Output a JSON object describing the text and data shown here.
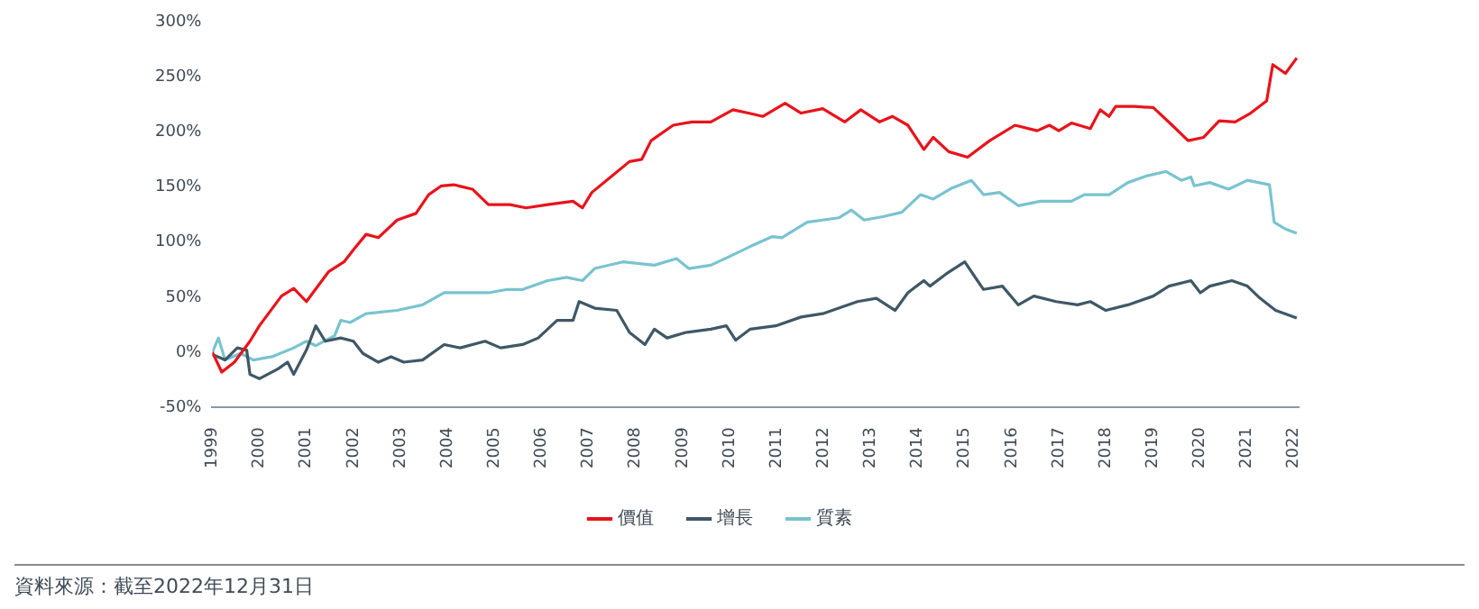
{
  "chart_data": {
    "type": "line",
    "annotations": [
      "資料來源：截至2022年12月31日"
    ],
    "xlim": [
      1999,
      2022.1
    ],
    "xticks": [
      1999,
      2000,
      2001,
      2002,
      2003,
      2004,
      2005,
      2006,
      2007,
      2008,
      2009,
      2010,
      2011,
      2012,
      2013,
      2014,
      2015,
      2016,
      2017,
      2018,
      2019,
      2020,
      2021,
      2022
    ],
    "ylim": [
      -50,
      300
    ],
    "yticks": [
      {
        "value": -50,
        "label": "-50%"
      },
      {
        "value": 0,
        "label": "0%"
      },
      {
        "value": 50,
        "label": "50%"
      },
      {
        "value": 100,
        "label": "100%"
      },
      {
        "value": 150,
        "label": "150%"
      },
      {
        "value": 200,
        "label": "200%"
      },
      {
        "value": 250,
        "label": "250%"
      },
      {
        "value": 300,
        "label": "300%"
      }
    ],
    "grid": false,
    "legend": "bottom",
    "marker": "none",
    "line_style": "solid",
    "series": [
      {
        "name": "價值",
        "color": "#e8141b",
        "x": [
          1999,
          1999.2,
          1999.47,
          1999.8,
          2000,
          2000.47,
          2000.73,
          2001,
          2001.47,
          2001.8,
          2002,
          2002.27,
          2002.53,
          2002.93,
          2003.33,
          2003.6,
          2003.87,
          2004.13,
          2004.53,
          2004.87,
          2005.33,
          2005.67,
          2006.13,
          2006.67,
          2006.87,
          2007.07,
          2007.47,
          2007.87,
          2008.13,
          2008.33,
          2008.8,
          2009.2,
          2009.6,
          2010.07,
          2010.4,
          2010.71,
          2011.18,
          2011.52,
          2011.98,
          2012.45,
          2012.79,
          2013.19,
          2013.46,
          2013.79,
          2014.13,
          2014.33,
          2014.66,
          2015.06,
          2015.53,
          2016.07,
          2016.54,
          2016.8,
          2017,
          2017.27,
          2017.67,
          2017.88,
          2018.07,
          2018.21,
          2018.61,
          2019.01,
          2019.41,
          2019.75,
          2020.08,
          2020.41,
          2020.75,
          2021.08,
          2021.42,
          2021.55,
          2021.82,
          2022.06
        ],
        "values": [
          0,
          -18,
          -9,
          10,
          24,
          51,
          58,
          46,
          73,
          82,
          93,
          107,
          104,
          120,
          126,
          143,
          151,
          152,
          148,
          134,
          134,
          131,
          134,
          137,
          131,
          145,
          159,
          173,
          175,
          192,
          206,
          209,
          209,
          220,
          217,
          214,
          226,
          217,
          221,
          209,
          220,
          209,
          214,
          206,
          184,
          195,
          182,
          177,
          192,
          206,
          201,
          206,
          201,
          208,
          203,
          220,
          214,
          223,
          223,
          222,
          206,
          192,
          195,
          210,
          209,
          217,
          228,
          261,
          253,
          267
        ]
      },
      {
        "name": "增長",
        "color": "#3f5866",
        "x": [
          1999,
          1999.27,
          1999.53,
          1999.73,
          1999.8,
          2000,
          2000.4,
          2000.6,
          2000.73,
          2001,
          2001.2,
          2001.4,
          2001.73,
          2002,
          2002.2,
          2002.53,
          2002.8,
          2003.07,
          2003.47,
          2003.93,
          2004.27,
          2004.8,
          2005.13,
          2005.6,
          2005.93,
          2006.33,
          2006.67,
          2006.8,
          2007.13,
          2007.6,
          2007.87,
          2008.2,
          2008.4,
          2008.67,
          2009.07,
          2009.6,
          2009.93,
          2010.13,
          2010.44,
          2010.98,
          2011.52,
          2011.98,
          2012.32,
          2012.72,
          2013.12,
          2013.52,
          2013.79,
          2014.13,
          2014.26,
          2014.6,
          2015,
          2015.27,
          2015.4,
          2015.8,
          2016.14,
          2016.47,
          2016.94,
          2017.4,
          2017.67,
          2018,
          2018.47,
          2019.01,
          2019.34,
          2019.81,
          2020.01,
          2020.21,
          2020.68,
          2021.01,
          2021.28,
          2021.61,
          2022.06
        ],
        "values": [
          -2,
          -7,
          4,
          2,
          -20,
          -24,
          -15,
          -9,
          -20,
          2,
          24,
          10,
          13,
          10,
          -1,
          -9,
          -4,
          -9,
          -7,
          7,
          4,
          10,
          4,
          7,
          13,
          29,
          29,
          46,
          40,
          38,
          18,
          7,
          21,
          13,
          18,
          21,
          24,
          11,
          21,
          24,
          32,
          35,
          40,
          46,
          49,
          38,
          54,
          65,
          60,
          71,
          82,
          65,
          57,
          60,
          43,
          51,
          46,
          43,
          46,
          38,
          43,
          51,
          60,
          65,
          54,
          60,
          65,
          60,
          49,
          38,
          31
        ]
      },
      {
        "name": "質素",
        "color": "#79c3d0",
        "x": [
          1999,
          1999.13,
          1999.27,
          1999.6,
          1999.87,
          2000.27,
          2000.73,
          2001,
          2001.2,
          2001.6,
          2001.73,
          2001.93,
          2002.27,
          2002.93,
          2003.47,
          2003.93,
          2004.4,
          2004.87,
          2005.27,
          2005.6,
          2006.13,
          2006.53,
          2006.87,
          2007.13,
          2007.73,
          2008.4,
          2008.87,
          2009.13,
          2009.6,
          2010,
          2010.44,
          2010.91,
          2011.11,
          2011.65,
          2012.32,
          2012.59,
          2012.86,
          2013.26,
          2013.66,
          2014.06,
          2014.33,
          2014.73,
          2015.14,
          2015.4,
          2015.74,
          2016.14,
          2016.61,
          2017.27,
          2017.54,
          2018.07,
          2018.47,
          2018.87,
          2019.28,
          2019.61,
          2019.81,
          2019.88,
          2020.21,
          2020.61,
          2021.01,
          2021.48,
          2021.58,
          2021.81,
          2022.06
        ],
        "values": [
          0,
          13,
          -7,
          -1,
          -7,
          -4,
          4,
          10,
          6,
          15,
          29,
          27,
          35,
          38,
          43,
          54,
          54,
          54,
          57,
          57,
          65,
          68,
          65,
          76,
          82,
          79,
          85,
          76,
          79,
          87,
          96,
          105,
          104,
          118,
          122,
          129,
          120,
          123,
          127,
          143,
          139,
          149,
          156,
          143,
          145,
          133,
          137,
          137,
          143,
          143,
          154,
          160,
          164,
          156,
          159,
          151,
          154,
          148,
          156,
          152,
          118,
          112,
          108
        ]
      }
    ]
  }
}
